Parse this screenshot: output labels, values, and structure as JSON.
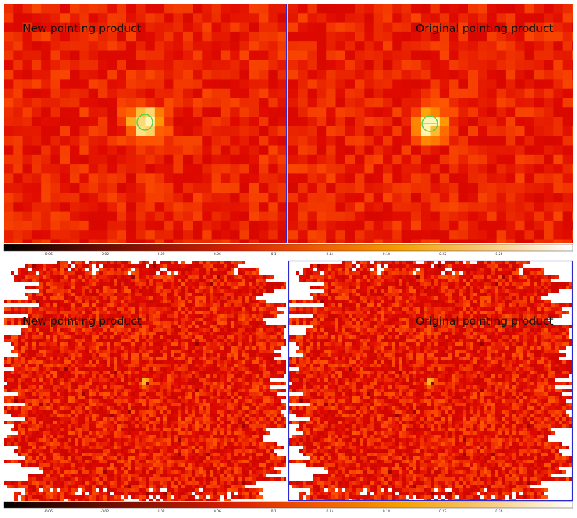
{
  "panels": [
    {
      "label": "New pointing product"
    },
    {
      "label": "Original pointing product"
    },
    {
      "label": "New pointing product"
    },
    {
      "label": "Original pointing product"
    }
  ],
  "colorbars": [
    {
      "ticks": [
        -0.06,
        -0.02,
        0.02,
        0.06,
        0.1,
        0.14,
        0.18,
        0.22,
        0.26
      ]
    },
    {
      "ticks": [
        -0.06,
        -0.02,
        0.02,
        0.06,
        0.1,
        0.14,
        0.18,
        0.22,
        0.26
      ]
    }
  ]
}
